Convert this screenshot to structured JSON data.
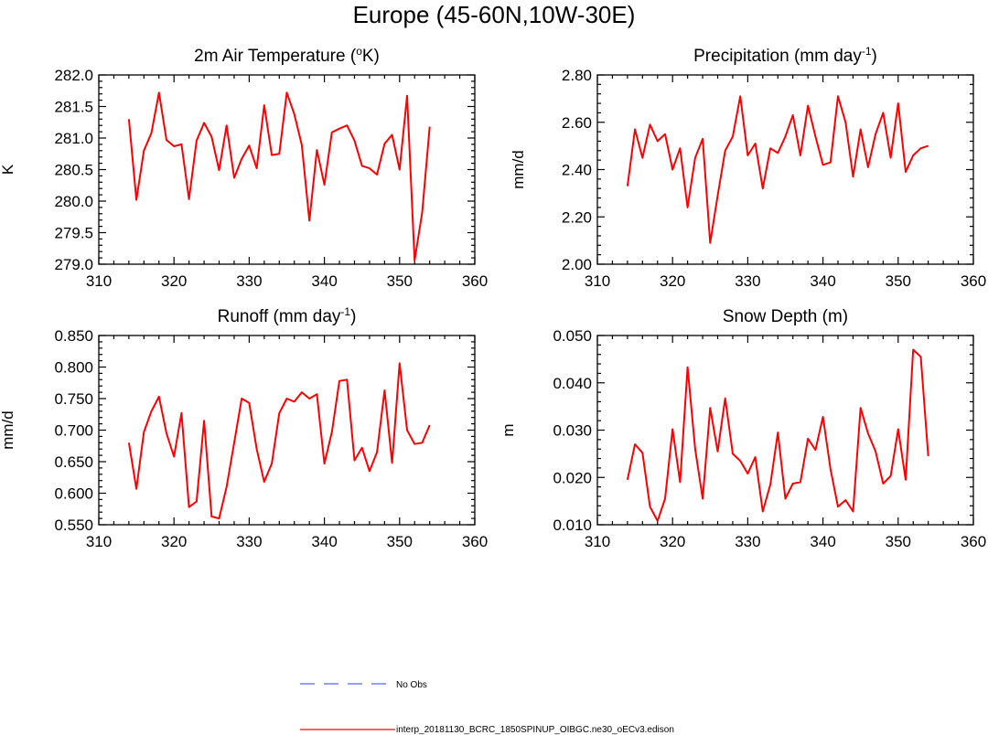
{
  "title": "Europe (45-60N,10W-30E)",
  "colors": {
    "model": "#ff0000",
    "obs": "#5566ff"
  },
  "legend": {
    "obs_label": "No Obs",
    "model_label": "interp_20181130_BCRC_1850SPINUP_OIBGC.ne30_oECv3.edison"
  },
  "chart_data": [
    {
      "type": "line",
      "title": "2m Air Temperature (oK)",
      "title_main": "2m Air Temperature (",
      "title_sup": "o",
      "title_tail": "K)",
      "ylabel": "K",
      "xlim": [
        310,
        360
      ],
      "ylim": [
        279.0,
        282.0
      ],
      "xticks": [
        310,
        320,
        330,
        340,
        350,
        360
      ],
      "yticks": [
        279.0,
        279.5,
        280.0,
        280.5,
        281.0,
        281.5,
        282.0
      ],
      "ytick_labels": [
        "279.0",
        "279.5",
        "280.0",
        "280.5",
        "281.0",
        "281.5",
        "282.0"
      ],
      "x": [
        314,
        315,
        316,
        317,
        318,
        319,
        320,
        321,
        322,
        323,
        324,
        325,
        326,
        327,
        328,
        329,
        330,
        331,
        332,
        333,
        334,
        335,
        336,
        337,
        338,
        339,
        340,
        341,
        342,
        343,
        344,
        345,
        346,
        347,
        348,
        349,
        350,
        351,
        352,
        353,
        354
      ],
      "values": [
        281.3,
        280.02,
        280.8,
        281.08,
        281.72,
        280.97,
        280.87,
        280.9,
        280.03,
        280.96,
        281.24,
        281.02,
        280.49,
        281.2,
        280.37,
        280.67,
        280.88,
        280.52,
        281.52,
        280.73,
        280.75,
        281.72,
        281.38,
        280.89,
        279.69,
        280.81,
        280.26,
        281.09,
        281.15,
        281.2,
        280.96,
        280.56,
        280.52,
        280.42,
        280.91,
        281.05,
        280.5,
        281.67,
        279.06,
        279.82,
        281.18
      ]
    },
    {
      "type": "line",
      "title": "Precipitation (mm day-1)",
      "title_main": "Precipitation (mm day",
      "title_sup": "-1",
      "title_tail": ")",
      "ylabel": "mm/d",
      "xlim": [
        310,
        360
      ],
      "ylim": [
        2.0,
        2.8
      ],
      "xticks": [
        310,
        320,
        330,
        340,
        350,
        360
      ],
      "yticks": [
        2.0,
        2.2,
        2.4,
        2.6,
        2.8
      ],
      "ytick_labels": [
        "2.00",
        "2.20",
        "2.40",
        "2.60",
        "2.80"
      ],
      "x": [
        314,
        315,
        316,
        317,
        318,
        319,
        320,
        321,
        322,
        323,
        324,
        325,
        326,
        327,
        328,
        329,
        330,
        331,
        332,
        333,
        334,
        335,
        336,
        337,
        338,
        339,
        340,
        341,
        342,
        343,
        344,
        345,
        346,
        347,
        348,
        349,
        350,
        351,
        352,
        353,
        354
      ],
      "values": [
        2.33,
        2.57,
        2.45,
        2.59,
        2.52,
        2.55,
        2.4,
        2.49,
        2.24,
        2.45,
        2.53,
        2.09,
        2.29,
        2.48,
        2.54,
        2.71,
        2.46,
        2.51,
        2.32,
        2.49,
        2.47,
        2.54,
        2.63,
        2.46,
        2.67,
        2.54,
        2.42,
        2.43,
        2.71,
        2.6,
        2.37,
        2.57,
        2.41,
        2.55,
        2.64,
        2.45,
        2.68,
        2.39,
        2.46,
        2.49,
        2.5
      ]
    },
    {
      "type": "line",
      "title": "Runoff (mm day-1)",
      "title_main": "Runoff (mm day",
      "title_sup": "-1",
      "title_tail": ")",
      "ylabel": "mm/d",
      "xlim": [
        310,
        360
      ],
      "ylim": [
        0.55,
        0.85
      ],
      "xticks": [
        310,
        320,
        330,
        340,
        350,
        360
      ],
      "yticks": [
        0.55,
        0.6,
        0.65,
        0.7,
        0.75,
        0.8,
        0.85
      ],
      "ytick_labels": [
        "0.550",
        "0.600",
        "0.650",
        "0.700",
        "0.750",
        "0.800",
        "0.850"
      ],
      "x": [
        314,
        315,
        316,
        317,
        318,
        319,
        320,
        321,
        322,
        323,
        324,
        325,
        326,
        327,
        328,
        329,
        330,
        331,
        332,
        333,
        334,
        335,
        336,
        337,
        338,
        339,
        340,
        341,
        342,
        343,
        344,
        345,
        346,
        347,
        348,
        349,
        350,
        351,
        352,
        353,
        354
      ],
      "values": [
        0.68,
        0.607,
        0.697,
        0.73,
        0.753,
        0.695,
        0.658,
        0.727,
        0.578,
        0.587,
        0.715,
        0.563,
        0.56,
        0.61,
        0.68,
        0.75,
        0.743,
        0.67,
        0.618,
        0.647,
        0.727,
        0.75,
        0.745,
        0.76,
        0.75,
        0.757,
        0.647,
        0.697,
        0.778,
        0.78,
        0.652,
        0.672,
        0.635,
        0.665,
        0.763,
        0.648,
        0.806,
        0.7,
        0.678,
        0.68,
        0.708
      ]
    },
    {
      "type": "line",
      "title": "Snow Depth (m)",
      "title_main": "Snow Depth (m)",
      "title_sup": "",
      "title_tail": "",
      "ylabel": "m",
      "xlim": [
        310,
        360
      ],
      "ylim": [
        0.01,
        0.05
      ],
      "xticks": [
        310,
        320,
        330,
        340,
        350,
        360
      ],
      "yticks": [
        0.01,
        0.02,
        0.03,
        0.04,
        0.05
      ],
      "ytick_labels": [
        "0.010",
        "0.020",
        "0.030",
        "0.040",
        "0.050"
      ],
      "x": [
        314,
        315,
        316,
        317,
        318,
        319,
        320,
        321,
        322,
        323,
        324,
        325,
        326,
        327,
        328,
        329,
        330,
        331,
        332,
        333,
        334,
        335,
        336,
        337,
        338,
        339,
        340,
        341,
        342,
        343,
        344,
        345,
        346,
        347,
        348,
        349,
        350,
        351,
        352,
        353,
        354
      ],
      "values": [
        0.0195,
        0.027,
        0.0252,
        0.0138,
        0.0108,
        0.0155,
        0.0302,
        0.019,
        0.0433,
        0.026,
        0.0155,
        0.0347,
        0.0255,
        0.0367,
        0.025,
        0.0235,
        0.0208,
        0.0243,
        0.0128,
        0.0185,
        0.0295,
        0.0155,
        0.0187,
        0.019,
        0.0282,
        0.0258,
        0.0328,
        0.0218,
        0.0138,
        0.0152,
        0.0128,
        0.0347,
        0.0293,
        0.0255,
        0.0187,
        0.0203,
        0.0302,
        0.0195,
        0.047,
        0.0455,
        0.0245
      ]
    }
  ]
}
